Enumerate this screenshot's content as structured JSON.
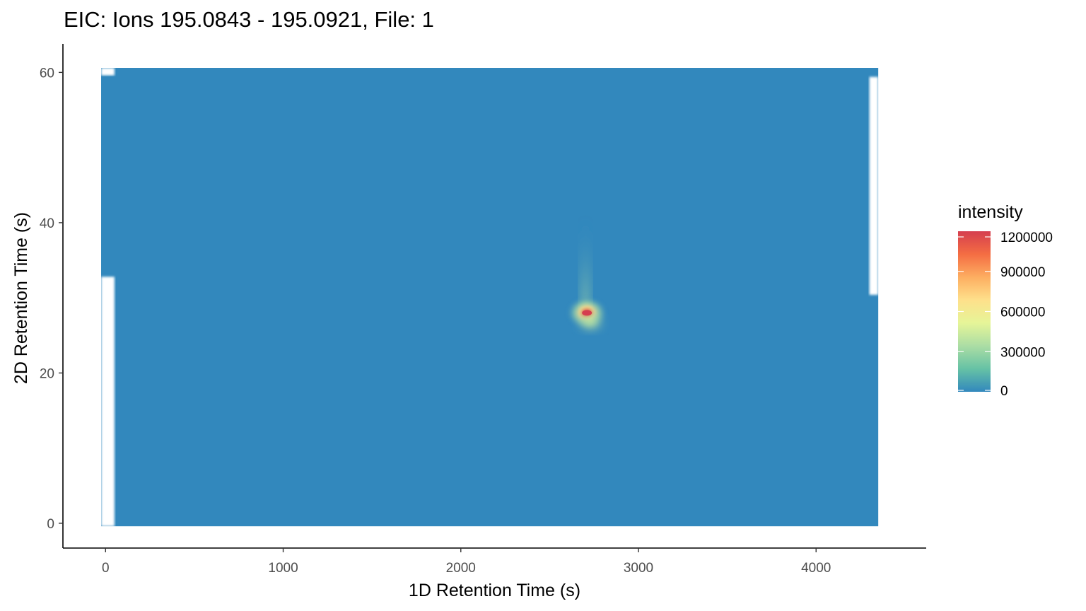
{
  "chart_data": {
    "type": "heatmap",
    "title": "EIC: Ions 195.0843 - 195.0921, File: 1",
    "xlabel": "1D Retention Time (s)",
    "ylabel": "2D Retention Time (s)",
    "xlim": [
      -240,
      4620
    ],
    "ylim": [
      -3.3,
      63.8
    ],
    "x_ticks": [
      0,
      1000,
      2000,
      3000,
      4000
    ],
    "y_ticks": [
      0,
      20,
      40,
      60
    ],
    "grid": false,
    "data_extent": {
      "x": [
        -25,
        4350
      ],
      "y": [
        -0.4,
        60.6
      ]
    },
    "missing_regions": [
      {
        "x": [
          -25,
          50
        ],
        "y": [
          -0.4,
          32.8
        ]
      },
      {
        "x": [
          -25,
          50
        ],
        "y": [
          59.6,
          60.6
        ]
      },
      {
        "x": [
          4300,
          4350
        ],
        "y": [
          30.4,
          59.4
        ]
      }
    ],
    "background_intensity": 0,
    "peaks": [
      {
        "x": 2710,
        "y": 28.0,
        "intensity": 1200000
      },
      {
        "x": 2730,
        "y": 26.8,
        "intensity": 450000
      }
    ],
    "legend": {
      "title": "intensity",
      "position": "right",
      "breaks": [
        0,
        300000,
        600000,
        900000,
        1200000
      ],
      "labels": [
        "0",
        "300000",
        "600000",
        "900000",
        "1200000"
      ],
      "limits": [
        0,
        1200000
      ]
    },
    "colorscale": [
      "#3288bd",
      "#66c2a5",
      "#abdda4",
      "#e6f598",
      "#fee08b",
      "#fdae61",
      "#f46d43",
      "#d53e4f"
    ]
  }
}
